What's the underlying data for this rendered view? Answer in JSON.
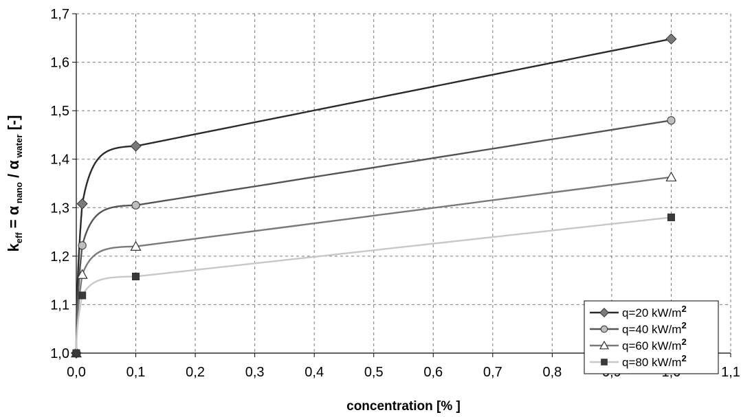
{
  "chart_data": {
    "type": "line",
    "title": "",
    "xlabel": "concentration [% ]",
    "ylabel": {
      "k": "k",
      "eff": "eff",
      "eq": " = ",
      "alpha1": "α",
      "nano": " nano",
      "slash": " / ",
      "alpha2": "α",
      "water": " water",
      "unit": "  [-]"
    },
    "xlim": [
      0.0,
      1.1
    ],
    "ylim": [
      1.0,
      1.7
    ],
    "x_ticks": [
      {
        "v": 0.0,
        "label": "0,0"
      },
      {
        "v": 0.1,
        "label": "0,1"
      },
      {
        "v": 0.2,
        "label": "0,2"
      },
      {
        "v": 0.3,
        "label": "0,3"
      },
      {
        "v": 0.4,
        "label": "0,4"
      },
      {
        "v": 0.5,
        "label": "0,5"
      },
      {
        "v": 0.6,
        "label": "0,6"
      },
      {
        "v": 0.7,
        "label": "0,7"
      },
      {
        "v": 0.8,
        "label": "0,8"
      },
      {
        "v": 0.9,
        "label": "0,9"
      },
      {
        "v": 1.0,
        "label": "1,0"
      },
      {
        "v": 1.1,
        "label": "1,1"
      }
    ],
    "y_ticks": [
      {
        "v": 1.0,
        "label": "1,0"
      },
      {
        "v": 1.1,
        "label": "1,1"
      },
      {
        "v": 1.2,
        "label": "1,2"
      },
      {
        "v": 1.3,
        "label": "1,3"
      },
      {
        "v": 1.4,
        "label": "1,4"
      },
      {
        "v": 1.5,
        "label": "1,5"
      },
      {
        "v": 1.6,
        "label": "1,6"
      },
      {
        "v": 1.7,
        "label": "1,7"
      }
    ],
    "grid": true,
    "legend_position": "bottom-right",
    "series": [
      {
        "name": "q=20 kW/m",
        "superscript": "2",
        "marker": "diamond",
        "color": "#2b2b2b",
        "marker_fill": "#7a7a7a",
        "x": [
          0.0,
          0.01,
          0.1,
          1.0
        ],
        "y": [
          1.0,
          1.308,
          1.427,
          1.648
        ]
      },
      {
        "name": "q=40 kW/m",
        "superscript": "2",
        "marker": "circle",
        "color": "#545454",
        "marker_fill": "#bdbdbd",
        "x": [
          0.0,
          0.01,
          0.1,
          1.0
        ],
        "y": [
          1.0,
          1.222,
          1.305,
          1.48
        ]
      },
      {
        "name": "q=60 kW/m",
        "superscript": "2",
        "marker": "triangle",
        "color": "#7a7a7a",
        "marker_fill": "#ffffff",
        "x": [
          0.0,
          0.01,
          0.1,
          1.0
        ],
        "y": [
          1.0,
          1.162,
          1.22,
          1.363
        ]
      },
      {
        "name": "q=80 kW/m",
        "superscript": "2",
        "marker": "square",
        "color": "#c8c8c8",
        "marker_fill": "#3a3a3a",
        "x": [
          0.0,
          0.01,
          0.1,
          1.0
        ],
        "y": [
          1.0,
          1.119,
          1.158,
          1.28
        ]
      }
    ]
  }
}
